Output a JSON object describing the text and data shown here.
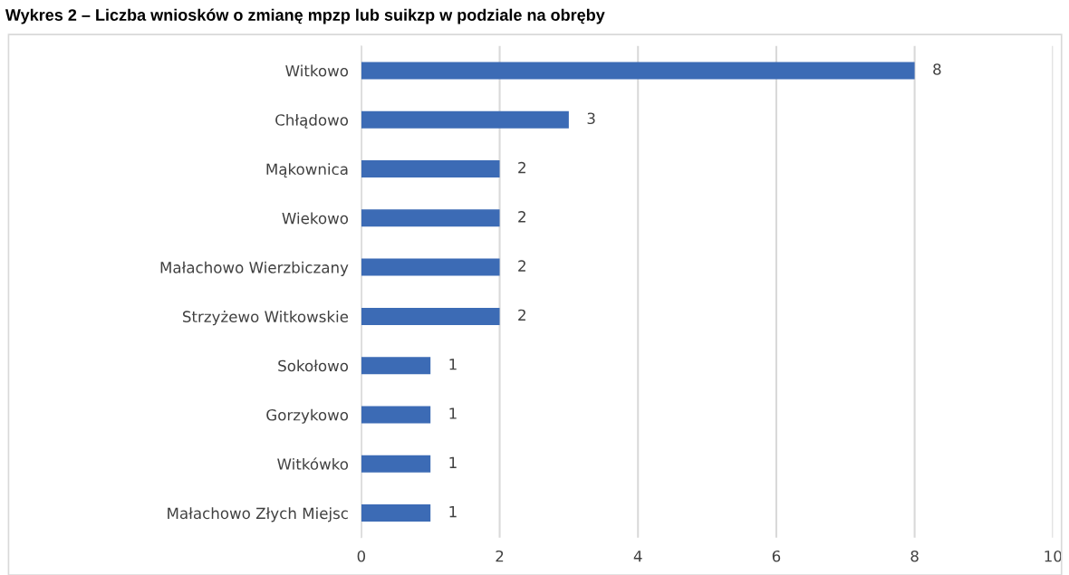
{
  "chart_data": {
    "type": "bar",
    "orientation": "horizontal",
    "title": "Wykres 2 – Liczba wniosków o zmianę mpzp lub suikzp w podziale na obręby",
    "categories": [
      "Witkowo",
      "Chłądowo",
      "Mąkownica",
      "Wiekowo",
      "Małachowo Wierzbiczany",
      "Strzyżewo Witkowskie",
      "Sokołowo",
      "Gorzykowo",
      "Witkówko",
      "Małachowo Złych Miejsc"
    ],
    "values": [
      8,
      3,
      2,
      2,
      2,
      2,
      1,
      1,
      1,
      1
    ],
    "color": "#3c6bb5",
    "xlim": [
      0,
      10
    ],
    "xticks": [
      0,
      2,
      4,
      6,
      8,
      10
    ],
    "grid": "x",
    "data_labels": true
  }
}
